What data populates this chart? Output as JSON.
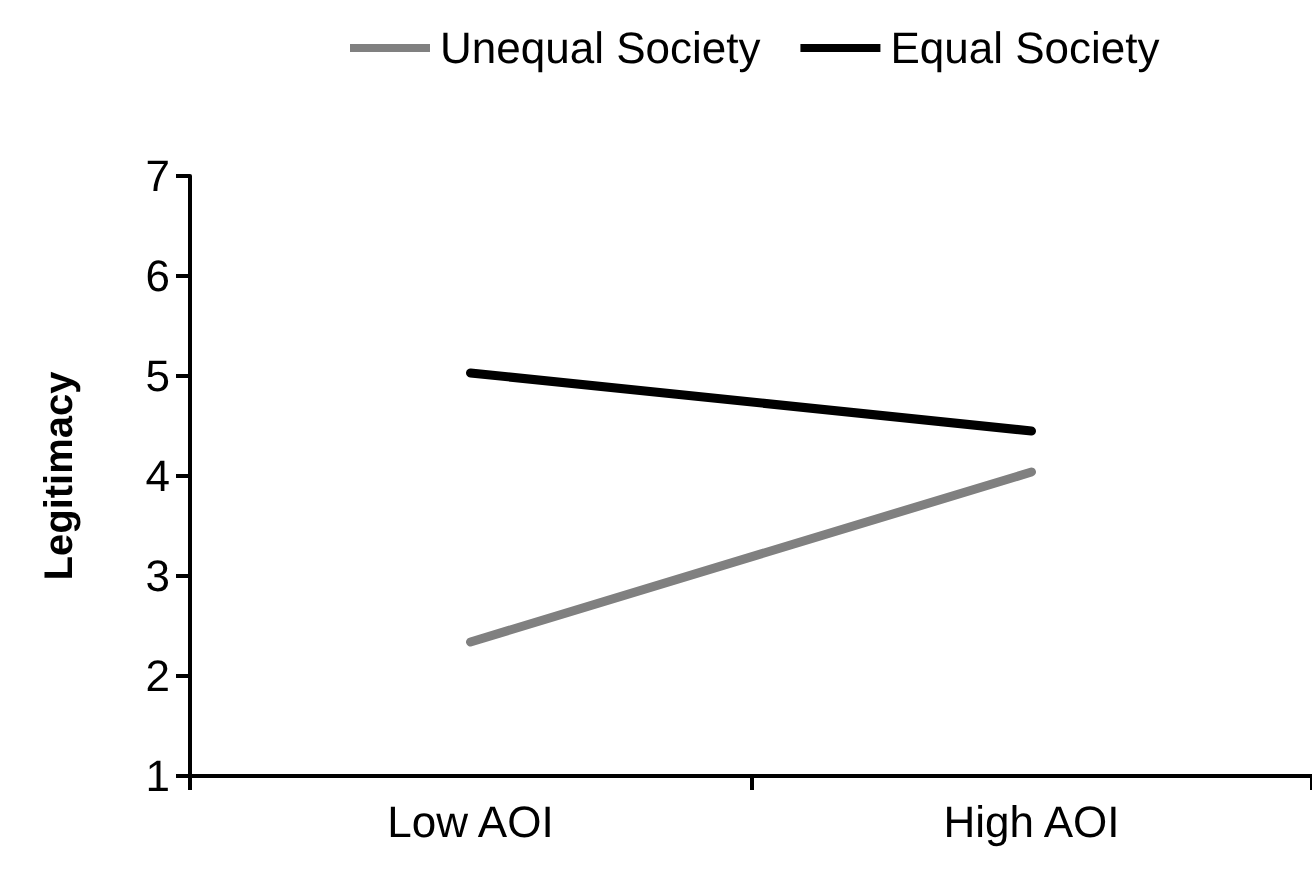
{
  "chart_data": {
    "type": "line",
    "ylabel": "Legitimacy",
    "categories": [
      "Low AOI",
      "High AOI"
    ],
    "series": [
      {
        "name": "Unequal Society",
        "color": "#808080",
        "values": [
          2.34,
          4.04
        ]
      },
      {
        "name": "Equal Society",
        "color": "#000000",
        "values": [
          5.03,
          4.45
        ]
      }
    ],
    "ylim": [
      1,
      7
    ],
    "yticks": [
      1,
      2,
      3,
      4,
      5,
      6,
      7
    ],
    "grid": false,
    "legend": "top",
    "marker": "none",
    "line_style": "solid"
  }
}
